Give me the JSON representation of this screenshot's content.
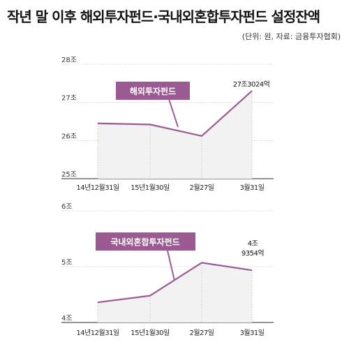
{
  "header": {
    "title": "작년 말 이후 해외투자펀드·국내외혼합투자펀드 설정잔액",
    "source": "(단위: 원, 자료: 금융투자협회)"
  },
  "colors": {
    "line": "#9b5b92",
    "callout": "#9b5b92",
    "area": "#f2f2f2",
    "grid": "#cccccc",
    "axis": "#555555"
  },
  "chart_data": [
    {
      "type": "area",
      "title": "해외투자펀드",
      "categories": [
        "14년12월31일",
        "15년1월30일",
        "2월27일",
        "3월31일"
      ],
      "series": [
        {
          "name": "해외투자펀드",
          "values": [
            26.45,
            26.42,
            26.12,
            27.3024
          ]
        }
      ],
      "ylim": [
        25,
        28
      ],
      "yticks": [
        25,
        26,
        27,
        28
      ],
      "ytick_labels": [
        "25조",
        "26조",
        "27조",
        "28조"
      ],
      "end_label": "27조3024억",
      "unit": "조 원"
    },
    {
      "type": "area",
      "title": "국내외혼합투자펀드",
      "categories": [
        "14년12월31일",
        "15년1월30일",
        "2월27일",
        "3월31일"
      ],
      "series": [
        {
          "name": "국내외혼합투자펀드",
          "values": [
            4.36,
            4.48,
            5.07,
            4.9354
          ]
        }
      ],
      "ylim": [
        4,
        6
      ],
      "yticks": [
        4,
        5,
        6
      ],
      "ytick_labels": [
        "4조",
        "5조",
        "6조"
      ],
      "end_label_lines": [
        "4조",
        "9354억"
      ],
      "unit": "조 원"
    }
  ]
}
